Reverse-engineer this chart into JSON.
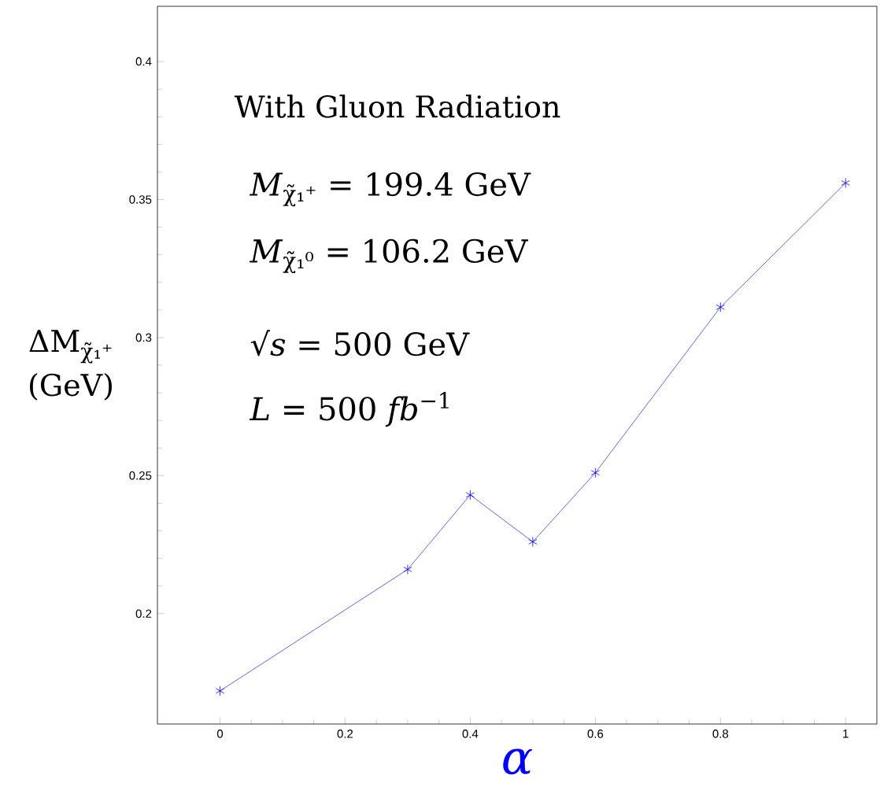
{
  "chart_data": {
    "type": "line",
    "xlabel": "α",
    "ylabel": "ΔM$_{χ̃₁⁺}$ (GeV)",
    "x": [
      0,
      0.3,
      0.4,
      0.5,
      0.6,
      0.8,
      1
    ],
    "values": [
      0.172,
      0.216,
      0.243,
      0.226,
      0.251,
      0.311,
      0.356
    ],
    "color": "#3a3aff",
    "marker": "cross",
    "line_style": "solid",
    "grid": false,
    "xlim": [
      -0.1,
      1.05
    ],
    "ylim": [
      0.16,
      0.42
    ],
    "xticks": [
      0,
      0.2,
      0.4,
      0.6,
      0.8,
      1
    ],
    "yticks": [
      0.2,
      0.25,
      0.3,
      0.35,
      0.4
    ],
    "annotations": [
      "With Gluon Radiation",
      "*M*$_{χ̃₁⁺}$ = 199.4 GeV",
      "*M*$_{χ̃₁⁰}$ = 106.2 GeV",
      "√*s* = 500 GeV",
      "*L* = 500 *fb*$^{−1}$"
    ]
  }
}
